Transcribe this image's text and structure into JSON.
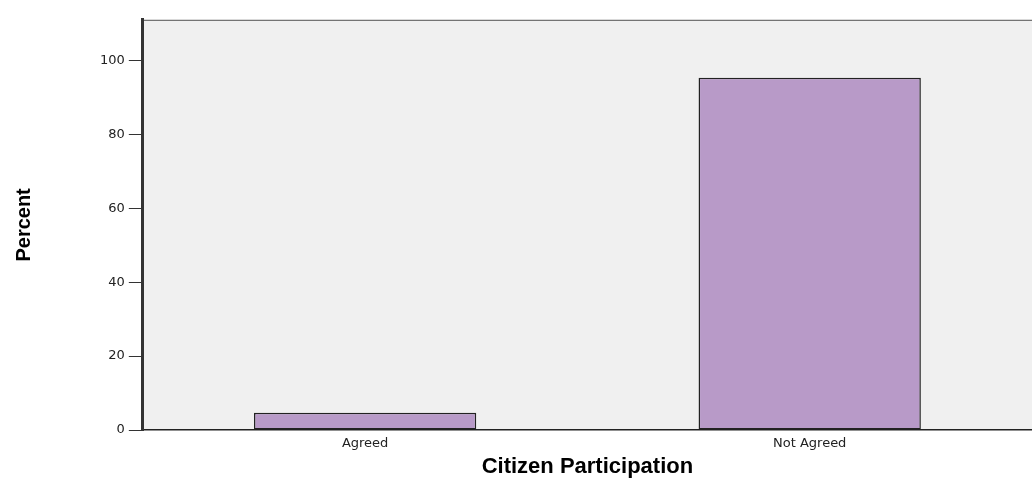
{
  "chart_data": {
    "type": "bar",
    "xlabel": "Citizen Participation",
    "ylabel": "Percent",
    "categories": [
      "Agreed",
      "Not Agreed"
    ],
    "values": [
      4.7,
      95.3
    ],
    "color": "#b89ac8",
    "ylim": [
      0,
      111
    ],
    "yticks": [
      0,
      20,
      40,
      60,
      80,
      100
    ],
    "grid": false,
    "legend": false
  }
}
